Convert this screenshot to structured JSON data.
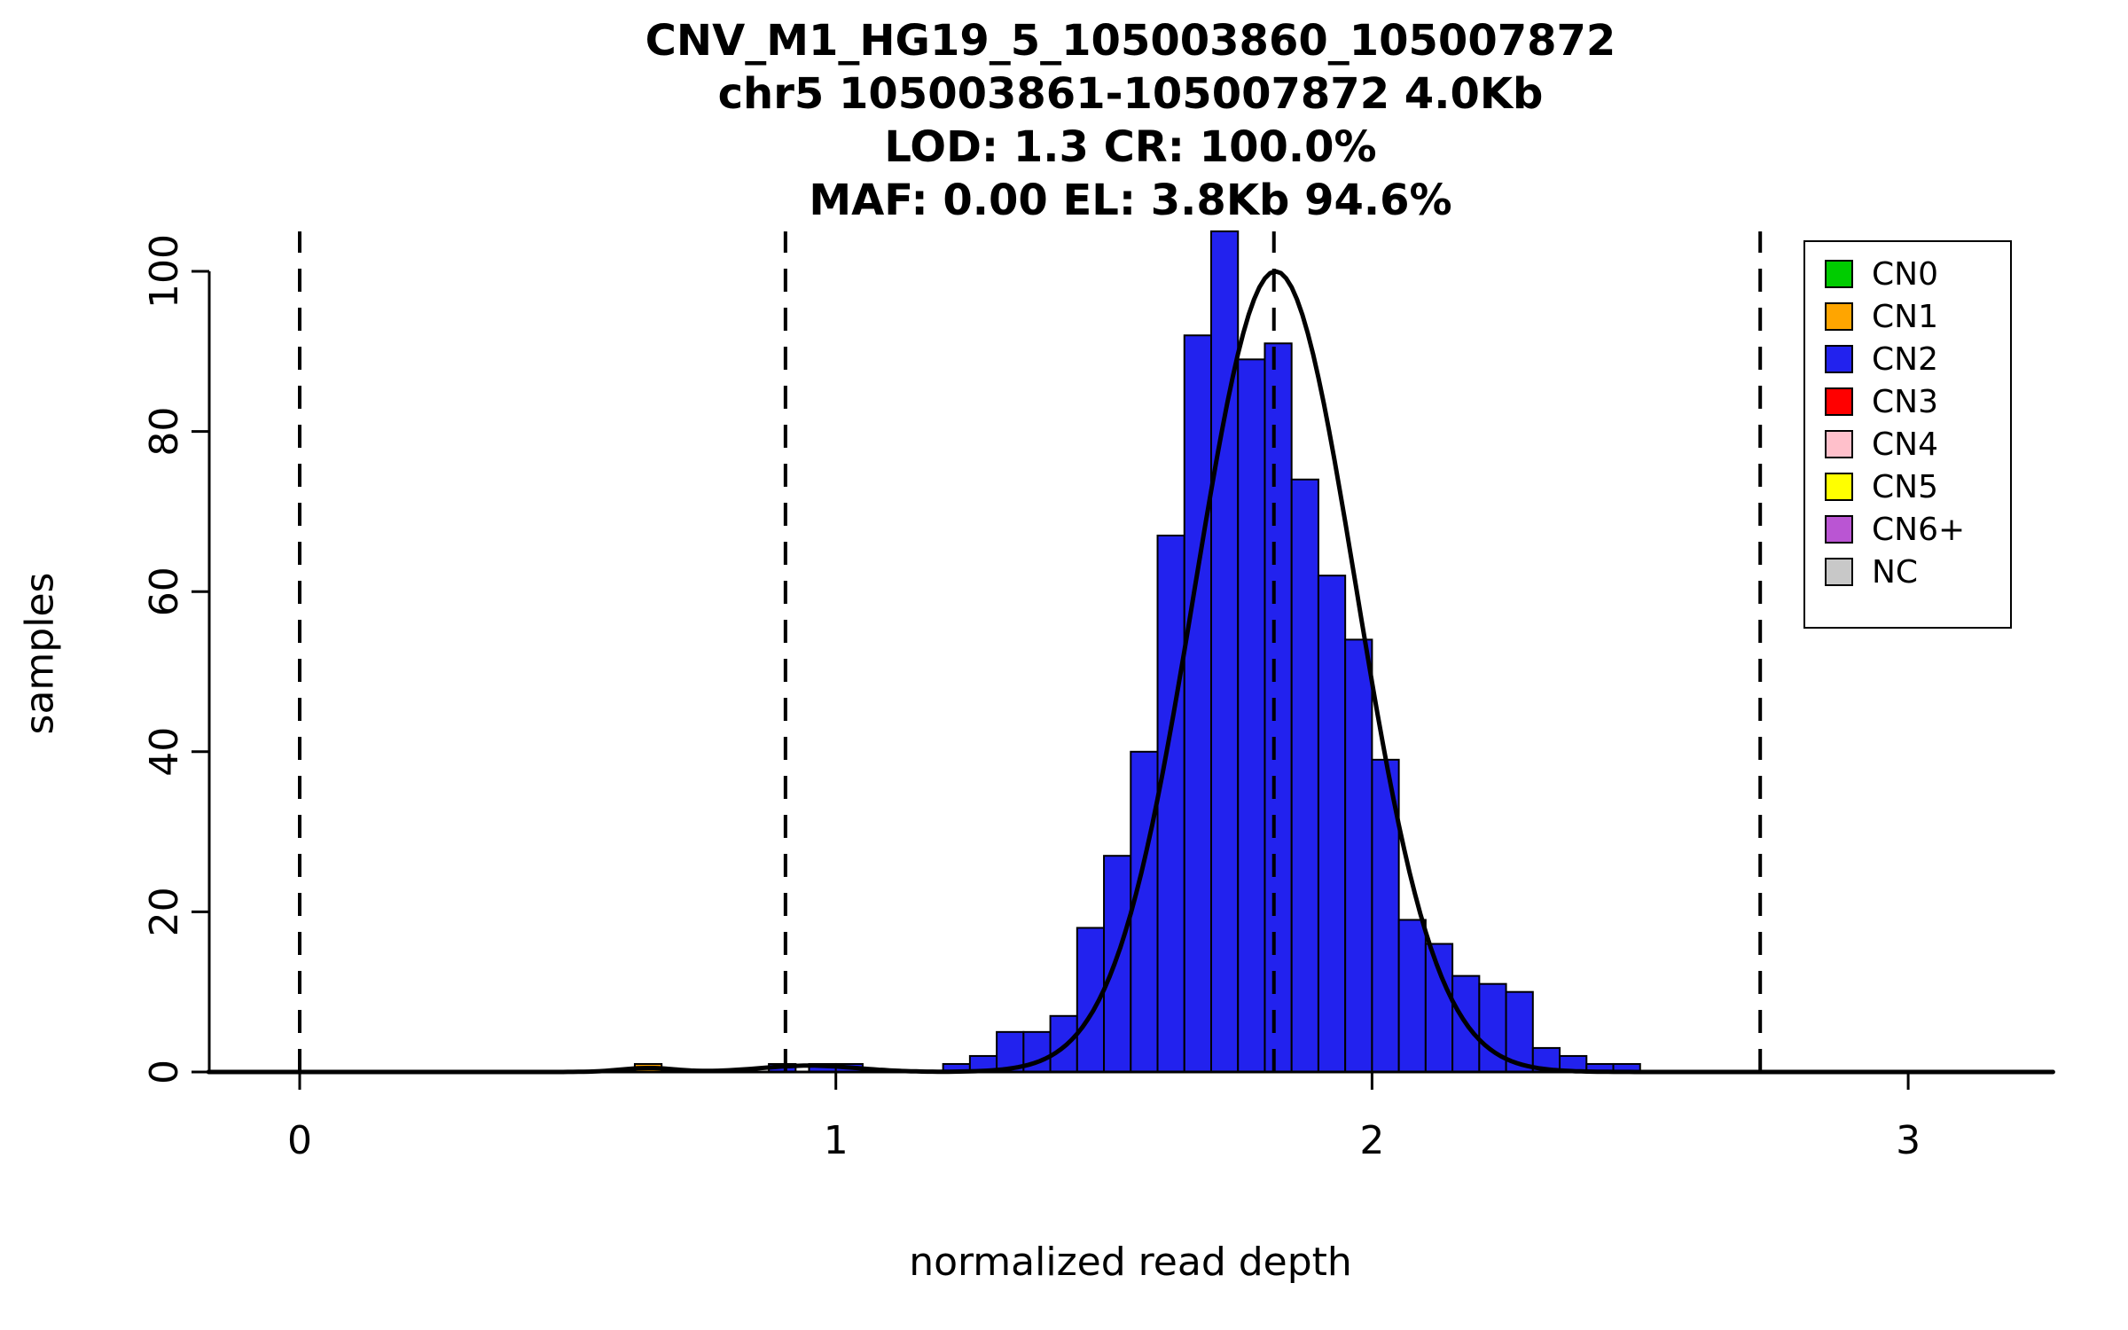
{
  "title": {
    "line1": "CNV_M1_HG19_5_105003860_105007872",
    "line2": "chr5 105003861-105007872 4.0Kb",
    "line3": "LOD: 1.3 CR: 100.0%",
    "line4": "MAF: 0.00 EL: 3.8Kb 94.6%"
  },
  "axes": {
    "xlabel": "normalized read depth",
    "ylabel": "samples"
  },
  "chart_data": {
    "type": "bar",
    "subtype": "histogram-with-gaussian-fit",
    "histogram_bin_width": 0.05,
    "xlim": [
      -0.17,
      3.27
    ],
    "ylim": [
      0,
      105
    ],
    "x_ticks": [
      0,
      1,
      2,
      3
    ],
    "y_ticks": [
      0,
      20,
      40,
      60,
      80,
      100
    ],
    "grid": false,
    "dashed_lines_x": [
      0,
      0.906,
      1.817,
      2.724
    ],
    "colors": {
      "CN0": "#00CC00",
      "CN1": "#FFA500",
      "CN2": "#2222EE",
      "CN3": "#FF0000",
      "CN4": "#FFC0CB",
      "CN5": "#FFFF00",
      "CN6+": "#BA55D3",
      "NC": "#C8C8C8",
      "curve": "#000000",
      "bar_border": "#000000"
    },
    "bars": [
      {
        "x": 0.625,
        "height": 1,
        "cn": "CN1"
      },
      {
        "x": 0.875,
        "height": 1,
        "cn": "CN2"
      },
      {
        "x": 0.95,
        "height": 1,
        "cn": "CN2"
      },
      {
        "x": 1.0,
        "height": 1,
        "cn": "CN2"
      },
      {
        "x": 1.2,
        "height": 1,
        "cn": "CN2"
      },
      {
        "x": 1.25,
        "height": 2,
        "cn": "CN2"
      },
      {
        "x": 1.3,
        "height": 5,
        "cn": "CN2"
      },
      {
        "x": 1.35,
        "height": 5,
        "cn": "CN2"
      },
      {
        "x": 1.4,
        "height": 7,
        "cn": "CN2"
      },
      {
        "x": 1.45,
        "height": 18,
        "cn": "CN2"
      },
      {
        "x": 1.5,
        "height": 27,
        "cn": "CN2"
      },
      {
        "x": 1.55,
        "height": 40,
        "cn": "CN2"
      },
      {
        "x": 1.6,
        "height": 67,
        "cn": "CN2"
      },
      {
        "x": 1.65,
        "height": 92,
        "cn": "CN2"
      },
      {
        "x": 1.7,
        "height": 105,
        "cn": "CN2"
      },
      {
        "x": 1.75,
        "height": 89,
        "cn": "CN2"
      },
      {
        "x": 1.8,
        "height": 91,
        "cn": "CN2"
      },
      {
        "x": 1.85,
        "height": 74,
        "cn": "CN2"
      },
      {
        "x": 1.9,
        "height": 62,
        "cn": "CN2"
      },
      {
        "x": 1.95,
        "height": 54,
        "cn": "CN2"
      },
      {
        "x": 2.0,
        "height": 39,
        "cn": "CN2"
      },
      {
        "x": 2.05,
        "height": 19,
        "cn": "CN2"
      },
      {
        "x": 2.1,
        "height": 16,
        "cn": "CN2"
      },
      {
        "x": 2.15,
        "height": 12,
        "cn": "CN2"
      },
      {
        "x": 2.2,
        "height": 11,
        "cn": "CN2"
      },
      {
        "x": 2.25,
        "height": 10,
        "cn": "CN2"
      },
      {
        "x": 2.3,
        "height": 3,
        "cn": "CN2"
      },
      {
        "x": 2.35,
        "height": 2,
        "cn": "CN2"
      },
      {
        "x": 2.4,
        "height": 1,
        "cn": "CN2"
      },
      {
        "x": 2.45,
        "height": 1,
        "cn": "CN2"
      }
    ],
    "fit_curve": {
      "components": [
        {
          "mean": 1.82,
          "sd": 0.15,
          "amplitude": 100
        },
        {
          "mean": 0.95,
          "sd": 0.09,
          "amplitude": 0.8
        },
        {
          "mean": 0.65,
          "sd": 0.05,
          "amplitude": 0.5
        }
      ]
    },
    "legend": {
      "position": "top-right",
      "entries": [
        {
          "label": "CN0",
          "color": "#00CC00"
        },
        {
          "label": "CN1",
          "color": "#FFA500"
        },
        {
          "label": "CN2",
          "color": "#2222EE"
        },
        {
          "label": "CN3",
          "color": "#FF0000"
        },
        {
          "label": "CN4",
          "color": "#FFC0CB"
        },
        {
          "label": "CN5",
          "color": "#FFFF00"
        },
        {
          "label": "CN6+",
          "color": "#BA55D3"
        },
        {
          "label": "NC",
          "color": "#C8C8C8"
        }
      ]
    }
  }
}
